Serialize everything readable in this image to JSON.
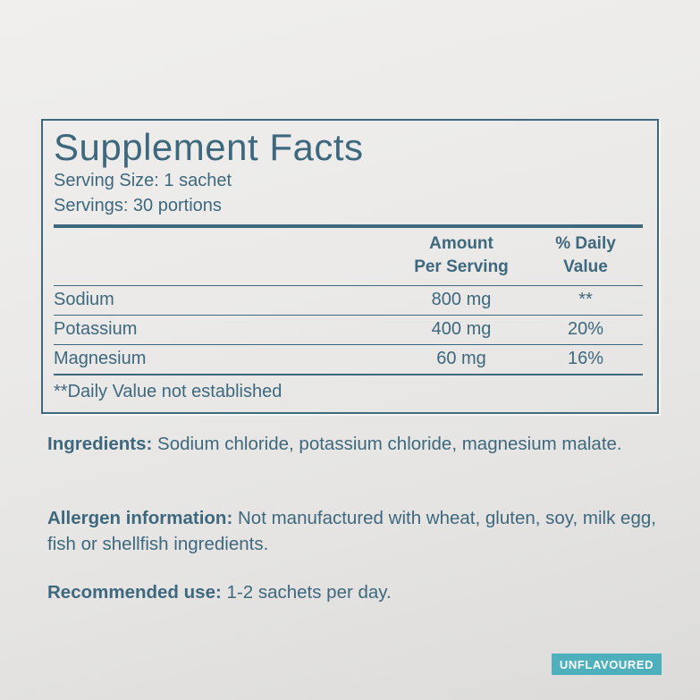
{
  "colors": {
    "text": "#3d687d",
    "line": "#3d687d",
    "badge_bg": "#4fb0bd",
    "badge_text": "#ffffff"
  },
  "panel": {
    "title": "Supplement Facts",
    "serving_size": "Serving Size: 1 sachet",
    "servings": "Servings: 30 portions",
    "table": {
      "header_amount": "Amount\nPer Serving",
      "header_dv": "% Daily\nValue",
      "rows": [
        {
          "name": "Sodium",
          "amount": "800 mg",
          "dv": "**"
        },
        {
          "name": "Potassium",
          "amount": "400 mg",
          "dv": "20%"
        },
        {
          "name": "Magnesium",
          "amount": "60 mg",
          "dv": "16%"
        }
      ],
      "footnote": "**Daily Value not established"
    }
  },
  "sections": {
    "ingredients": {
      "label": "Ingredients:",
      "text": "Sodium chloride, potassium chloride, magnesium malate."
    },
    "allergen": {
      "label": "Allergen information:",
      "text": "Not manufactured with wheat, gluten, soy, milk egg, fish or shellfish ingredients."
    },
    "recommended": {
      "label": "Recommended use:",
      "text": "1-2 sachets per day."
    }
  },
  "badge": {
    "label": "UNFLAVOURED"
  }
}
